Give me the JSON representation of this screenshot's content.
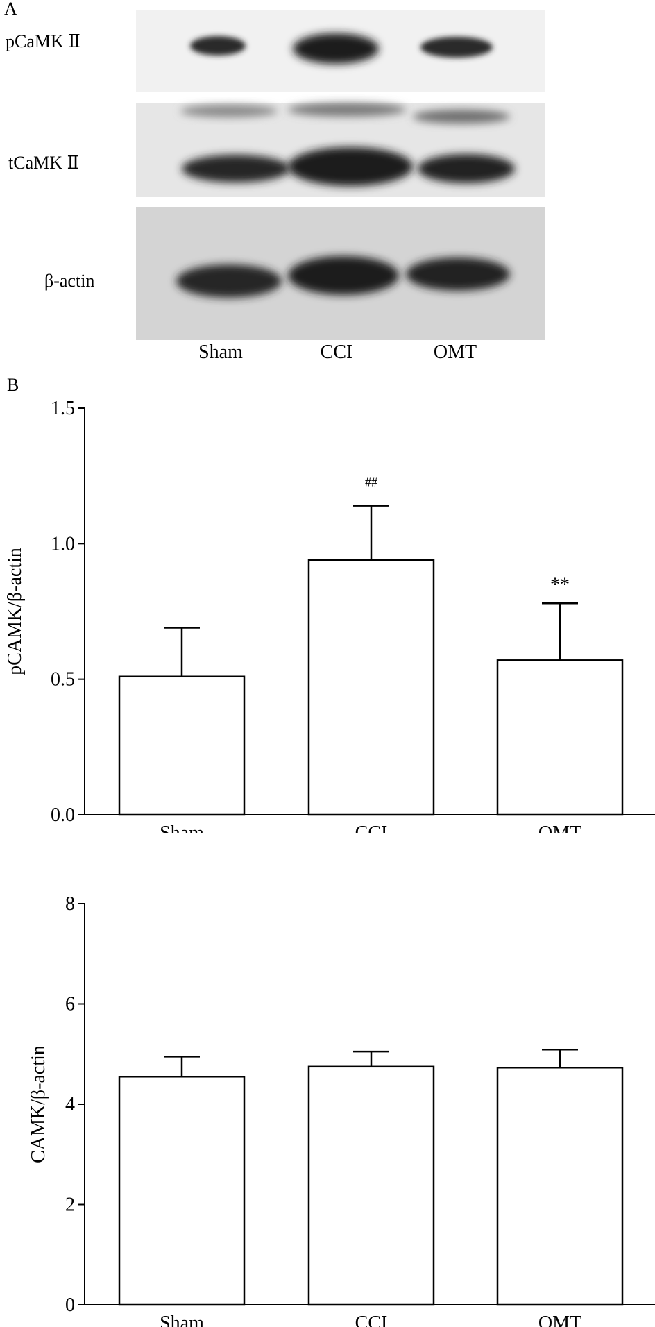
{
  "panel_a": {
    "label": "A",
    "rows": [
      {
        "name": "pCaMK Ⅱ",
        "intensity": [
          0.82,
          1.0,
          0.8
        ]
      },
      {
        "name": "tCaMK Ⅱ",
        "intensity": [
          0.85,
          1.0,
          0.9
        ]
      },
      {
        "name": "β-actin",
        "intensity": [
          0.92,
          0.95,
          0.9
        ]
      }
    ],
    "lanes": [
      "Sham",
      "CCI",
      "OMT"
    ]
  },
  "panel_b": {
    "label": "B"
  },
  "chart_data": [
    {
      "type": "bar",
      "title": "",
      "xlabel": "",
      "ylabel": "pCAMK/β-actin",
      "categories": [
        "Sham",
        "CCI",
        "OMT"
      ],
      "values": [
        0.51,
        0.94,
        0.57
      ],
      "errors": [
        0.18,
        0.2,
        0.21
      ],
      "annotations": [
        "",
        "##",
        "**"
      ],
      "ylim": [
        0,
        1.5
      ],
      "yticks": [
        "0.0",
        "0.5",
        "1.0",
        "1.5"
      ],
      "ytick_values": [
        0,
        0.5,
        1.0,
        1.5
      ]
    },
    {
      "type": "bar",
      "title": "",
      "xlabel": "",
      "ylabel": "CAMK/β-actin",
      "categories": [
        "Sham",
        "CCI",
        "OMT"
      ],
      "values": [
        4.55,
        4.75,
        4.73
      ],
      "errors": [
        0.4,
        0.3,
        0.36
      ],
      "annotations": [
        "",
        "",
        ""
      ],
      "ylim": [
        0,
        8
      ],
      "yticks": [
        "0",
        "2",
        "4",
        "6",
        "8"
      ],
      "ytick_values": [
        0,
        2,
        4,
        6,
        8
      ]
    }
  ]
}
